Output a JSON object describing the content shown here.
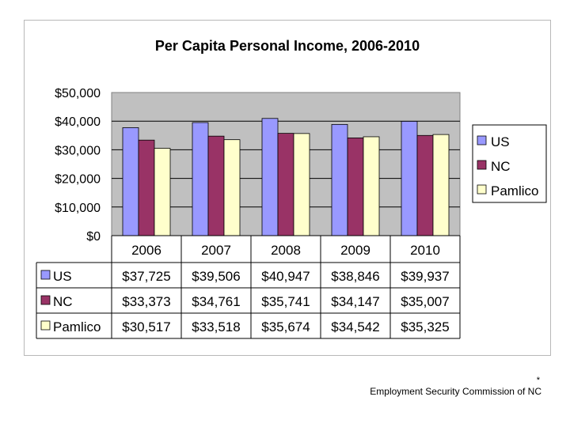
{
  "chart_data": {
    "type": "bar",
    "title": "Per Capita Personal Income, 2006-2010",
    "categories": [
      "2006",
      "2007",
      "2008",
      "2009",
      "2010"
    ],
    "series": [
      {
        "name": "US",
        "color": "#9999ff",
        "values": [
          37725,
          39506,
          40947,
          38846,
          39937
        ],
        "labels": [
          "$37,725",
          "$39,506",
          "$40,947",
          "$38,846",
          "$39,937"
        ]
      },
      {
        "name": "NC",
        "color": "#993366",
        "values": [
          33373,
          34761,
          35741,
          34147,
          35007
        ],
        "labels": [
          "$33,373",
          "$34,761",
          "$35,741",
          "$34,147",
          "$35,007"
        ]
      },
      {
        "name": "Pamlico",
        "color": "#ffffcc",
        "values": [
          30517,
          33518,
          35674,
          34542,
          35325
        ],
        "labels": [
          "$30,517",
          "$33,518",
          "$35,674",
          "$34,542",
          "$35,325"
        ]
      }
    ],
    "ylim": [
      0,
      50000
    ],
    "yticks": [
      "$0",
      "$10,000",
      "$20,000",
      "$30,000",
      "$40,000",
      "$50,000"
    ],
    "xlabel": "",
    "ylabel": "",
    "legend": "right",
    "grid": true,
    "plot_background": "#c0c0c0",
    "data_table": true
  },
  "footnote": {
    "mark": "*",
    "text": "Employment Security Commission of NC"
  }
}
